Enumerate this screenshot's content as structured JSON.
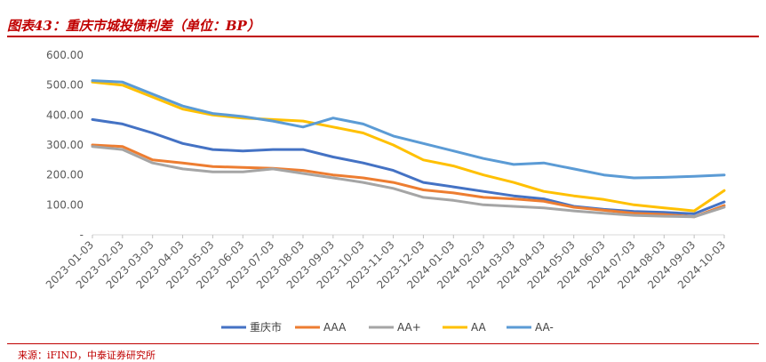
{
  "figure": {
    "title": "图表43：重庆市城投债利差（单位：BP）",
    "source": "来源：iFIND，中泰证券研究所"
  },
  "chart_data": {
    "type": "line",
    "title": "图表43：重庆市城投债利差（单位：BP）",
    "xlabel": "",
    "ylabel": "",
    "ylim": [
      0,
      600
    ],
    "y_ticks": [
      "-",
      "100.00",
      "200.00",
      "300.00",
      "400.00",
      "500.00",
      "600.00"
    ],
    "x_ticks": [
      "2023-01-03",
      "2023-02-03",
      "2023-03-03",
      "2023-04-03",
      "2023-05-03",
      "2023-06-03",
      "2023-07-03",
      "2023-08-03",
      "2023-09-03",
      "2023-10-03",
      "2023-11-03",
      "2023-12-03",
      "2024-01-03",
      "2024-02-03",
      "2024-03-03",
      "2024-04-03",
      "2024-05-03",
      "2024-06-03",
      "2024-07-03",
      "2024-08-03",
      "2024-09-03",
      "2024-10-03"
    ],
    "grid": false,
    "legend_position": "bottom",
    "series": [
      {
        "name": "重庆市",
        "color": "#4472c4",
        "values": [
          385,
          370,
          340,
          305,
          285,
          280,
          285,
          285,
          260,
          240,
          215,
          175,
          160,
          145,
          130,
          120,
          95,
          85,
          78,
          75,
          70,
          110
        ]
      },
      {
        "name": "AAA",
        "color": "#ed7d31",
        "values": [
          300,
          295,
          250,
          240,
          228,
          225,
          222,
          215,
          200,
          190,
          175,
          150,
          140,
          125,
          120,
          112,
          92,
          82,
          72,
          68,
          60,
          98
        ]
      },
      {
        "name": "AA+",
        "color": "#a5a5a5",
        "values": [
          295,
          285,
          240,
          220,
          210,
          210,
          220,
          205,
          190,
          175,
          155,
          125,
          115,
          100,
          95,
          90,
          80,
          72,
          65,
          62,
          60,
          92
        ]
      },
      {
        "name": "AA",
        "color": "#ffc000",
        "values": [
          510,
          500,
          460,
          420,
          400,
          390,
          385,
          380,
          360,
          340,
          300,
          250,
          230,
          200,
          175,
          145,
          130,
          118,
          100,
          90,
          80,
          148
        ]
      },
      {
        "name": "AA-",
        "color": "#5b9bd5",
        "values": [
          515,
          510,
          470,
          430,
          405,
          395,
          380,
          360,
          390,
          370,
          330,
          305,
          280,
          255,
          235,
          240,
          220,
          200,
          190,
          192,
          195,
          200
        ]
      }
    ]
  }
}
